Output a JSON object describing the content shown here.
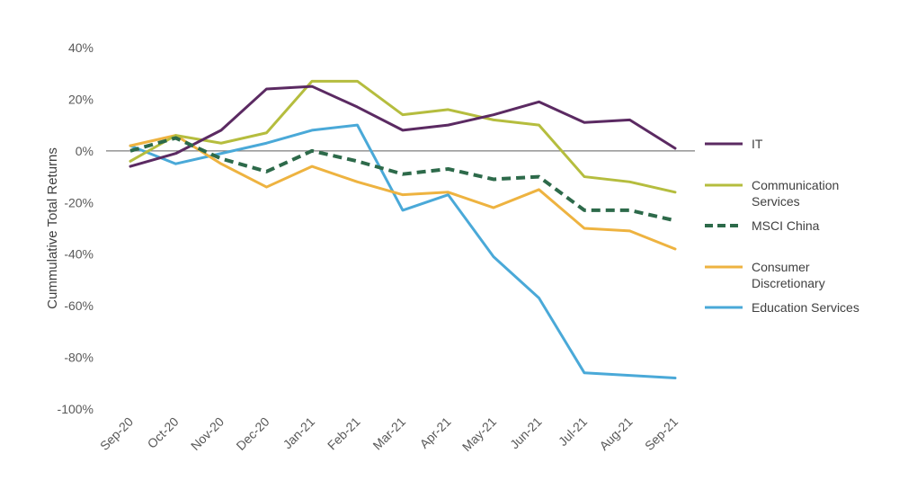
{
  "chart_data": {
    "type": "line",
    "title": "",
    "xlabel": "",
    "ylabel": "Cummulative Total Returns",
    "ylim": [
      -100,
      40
    ],
    "y_ticks": [
      40,
      20,
      0,
      -20,
      -40,
      -60,
      -80,
      -100
    ],
    "y_tick_labels": [
      "40%",
      "20%",
      "0%",
      "-20%",
      "-40%",
      "-60%",
      "-80%",
      "-100%"
    ],
    "categories": [
      "Sep-20",
      "Oct-20",
      "Nov-20",
      "Dec-20",
      "Jan-21",
      "Feb-21",
      "Mar-21",
      "Apr-21",
      "May-21",
      "Jun-21",
      "Jul-21",
      "Aug-21",
      "Sep-21"
    ],
    "zero_line": true,
    "grid": false,
    "legend_position": "right",
    "series": [
      {
        "name": "IT",
        "color": "#5b2a62",
        "dashed": false,
        "values": [
          -6,
          -1,
          8,
          24,
          25,
          17,
          8,
          10,
          14,
          19,
          11,
          12,
          1
        ]
      },
      {
        "name": "Communication Services",
        "color": "#b5bd3e",
        "dashed": false,
        "legend_lines": [
          "Communication",
          "Services"
        ],
        "values": [
          -4,
          6,
          3,
          7,
          27,
          27,
          14,
          16,
          12,
          10,
          -10,
          -12,
          -16
        ]
      },
      {
        "name": "MSCI China",
        "color": "#2d6a4a",
        "dashed": true,
        "values": [
          0,
          5,
          -3,
          -8,
          0,
          -4,
          -9,
          -7,
          -11,
          -10,
          -23,
          -23,
          -27
        ]
      },
      {
        "name": "Consumer Discretionary",
        "color": "#eeb340",
        "dashed": false,
        "legend_lines": [
          "Consumer",
          "Discretionary"
        ],
        "values": [
          2,
          6,
          -5,
          -14,
          -6,
          -12,
          -17,
          -16,
          -22,
          -15,
          -30,
          -31,
          -38
        ]
      },
      {
        "name": "Education Services",
        "color": "#4aa9d8",
        "dashed": false,
        "values": [
          2,
          -5,
          -1,
          3,
          8,
          10,
          -23,
          -17,
          -41,
          -57,
          -86,
          -87,
          -88
        ]
      }
    ]
  }
}
